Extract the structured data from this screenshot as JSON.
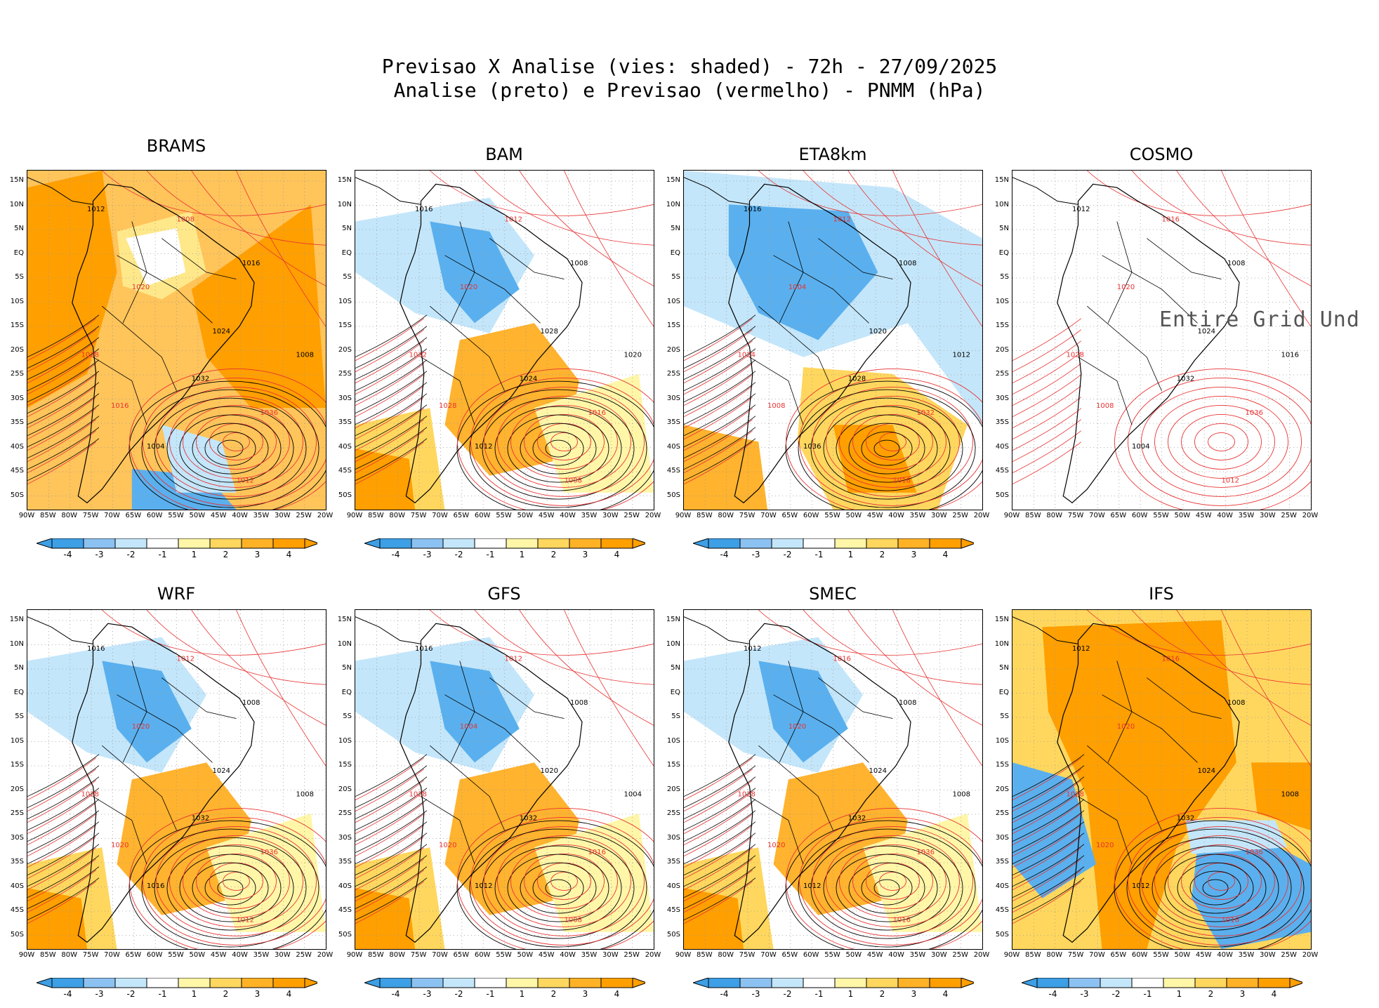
{
  "header": {
    "line1": "Previsao X Analise (vies: shaded) - 72h - 27/09/2025",
    "line2": "Analise (preto) e Previsao (vermelho) - PNMM (hPa)"
  },
  "axes": {
    "lat_labels": [
      "15N",
      "10N",
      "5N",
      "EQ",
      "5S",
      "10S",
      "15S",
      "20S",
      "25S",
      "30S",
      "35S",
      "40S",
      "45S",
      "50S"
    ],
    "lon_labels": [
      "90W",
      "85W",
      "80W",
      "75W",
      "70W",
      "65W",
      "60W",
      "55W",
      "50W",
      "45W",
      "40W",
      "35W",
      "30W",
      "25W",
      "20W"
    ]
  },
  "colorbar": {
    "ticks": [
      "-4",
      "-3",
      "-2",
      "-1",
      "1",
      "2",
      "3",
      "4"
    ],
    "colors": [
      "#3d9fe6",
      "#8cc2f2",
      "#c4e6fa",
      "#ffffff",
      "#fff6a8",
      "#ffd75e",
      "#ffb226",
      "#ff9f00"
    ]
  },
  "colors": {
    "analysis_contour": "#000000",
    "forecast_contour": "#e83232",
    "negative_bias": "#5ab0ee",
    "positive_bias": "#ffb32e"
  },
  "panels": [
    {
      "name": "BRAMS",
      "bias": "warm",
      "labels": [
        "1012",
        "1008",
        "1016",
        "1020",
        "1024",
        "1028",
        "1032",
        "1036",
        "1004"
      ]
    },
    {
      "name": "BAM",
      "bias": "mixed",
      "labels": [
        "1016",
        "1012",
        "1008",
        "1020",
        "1028",
        "1032",
        "1024"
      ]
    },
    {
      "name": "ETA8km",
      "bias": "cold",
      "labels": [
        "1016",
        "1012",
        "1008",
        "1004",
        "1020",
        "1024",
        "1028",
        "1032",
        "1036"
      ]
    },
    {
      "name": "COSMO",
      "bias": "none",
      "labels": [
        "1012",
        "1016",
        "1008",
        "1020",
        "1024",
        "1028",
        "1032",
        "1036",
        "1004"
      ],
      "overlay": "Entire Grid Und"
    },
    {
      "name": "WRF",
      "bias": "mixed",
      "labels": [
        "1016",
        "1012",
        "1008",
        "1020",
        "1024",
        "1028",
        "1032",
        "1036"
      ]
    },
    {
      "name": "GFS",
      "bias": "mixed",
      "labels": [
        "1016",
        "1012",
        "1008",
        "1004",
        "1020",
        "1028",
        "1032"
      ]
    },
    {
      "name": "SMEC",
      "bias": "mixed",
      "labels": [
        "1012",
        "1016",
        "1008",
        "1020",
        "1024",
        "1028",
        "1032",
        "1036"
      ]
    },
    {
      "name": "IFS",
      "bias": "strong",
      "labels": [
        "1012",
        "1016",
        "1008",
        "1020",
        "1024",
        "1028",
        "1032",
        "1036"
      ]
    }
  ]
}
